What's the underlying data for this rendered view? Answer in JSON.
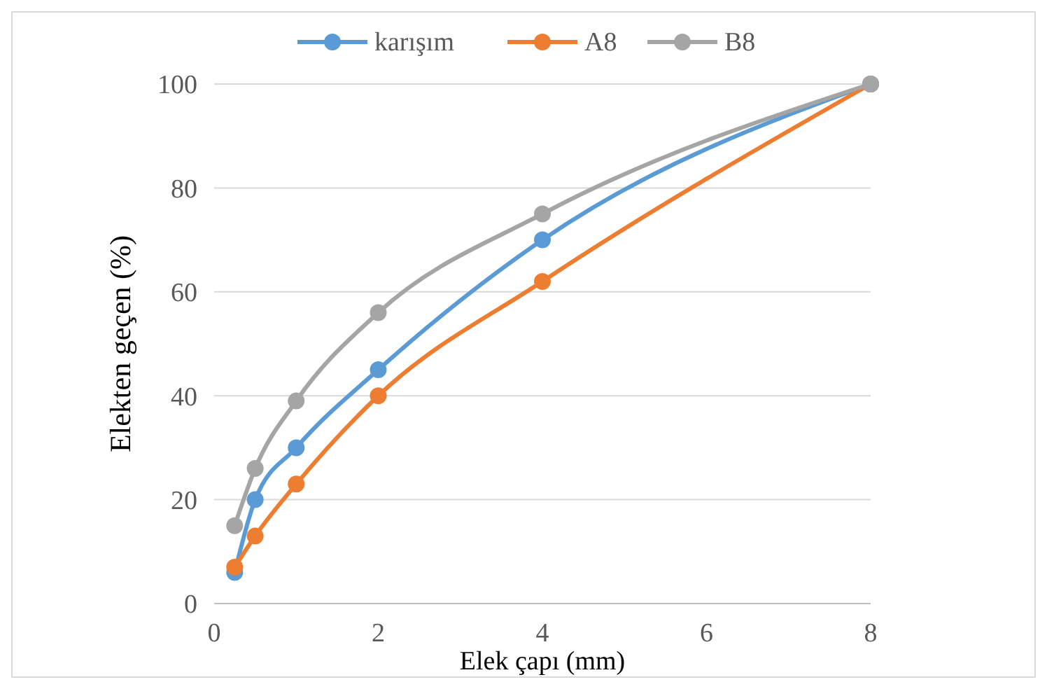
{
  "chart_data": {
    "type": "line",
    "xlabel": "Elek çapı (mm)",
    "ylabel": "Elekten geçen (%)",
    "x": [
      0.25,
      0.5,
      1,
      2,
      4,
      8
    ],
    "xlim": [
      0,
      8
    ],
    "xticks": [
      0,
      2,
      4,
      6,
      8
    ],
    "ylim": [
      0,
      100
    ],
    "yticks": [
      0,
      20,
      40,
      60,
      80,
      100
    ],
    "grid": "y",
    "legend": "top",
    "marker": "circle",
    "line_style": "solid",
    "series": [
      {
        "name": "karışım",
        "color": "#5b9bd5",
        "values": [
          6,
          20,
          30,
          45,
          70,
          100
        ]
      },
      {
        "name": "A8",
        "color": "#ed7d31",
        "values": [
          7,
          13,
          23,
          40,
          62,
          100
        ]
      },
      {
        "name": "B8",
        "color": "#a5a5a5",
        "values": [
          15,
          26,
          39,
          56,
          75,
          100
        ]
      }
    ]
  }
}
